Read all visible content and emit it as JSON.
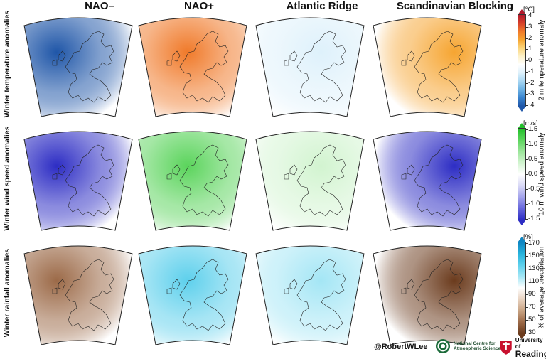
{
  "columns": [
    "NAO–",
    "NAO+",
    "Atlantic Ridge",
    "Scandinavian Blocking"
  ],
  "rows": [
    "Winter temperature anomalies",
    "Winter wind speed anomalies",
    "Winter rainfall anomalies"
  ],
  "colorbars": [
    {
      "unit": "[°C]",
      "label": "2 m temperature anomaly",
      "ticks": [
        "4",
        "3",
        "2",
        "1",
        "0",
        "-1",
        "-2",
        "-3",
        "-4"
      ],
      "colors": [
        "#b2182b",
        "#d6402a",
        "#f07a2a",
        "#f6a531",
        "#fbd57a",
        "#fdf1c8",
        "#ffffff",
        "#def1fb",
        "#a9d7f3",
        "#6fb3e4",
        "#3a84cf",
        "#1f56a8"
      ]
    },
    {
      "unit": "[m/s]",
      "label": "10 m wind speed anomaly",
      "ticks": [
        "1.5",
        "1.0",
        "0.5",
        "0.0",
        "-0.5",
        "-1.0",
        "-1.5"
      ],
      "colors": [
        "#22c02a",
        "#5bd45c",
        "#9be59a",
        "#d2f4d0",
        "#ffffff",
        "#d9d9f6",
        "#a5a5ec",
        "#6767dc",
        "#2d2dc4"
      ]
    },
    {
      "unit": "[%]",
      "label": "% of average precipitation",
      "ticks": [
        "170",
        "150",
        "130",
        "110",
        "90",
        "70",
        "50",
        "30"
      ],
      "colors": [
        "#0f86c2",
        "#27b3dc",
        "#5ed0ec",
        "#a4e6f5",
        "#ffffff",
        "#e8d2c0",
        "#c8a383",
        "#9c6a48",
        "#6b3b1d"
      ]
    }
  ],
  "panels": [
    [
      "#1f56a8",
      "#f07a2a",
      "#def1fb",
      "#f6a531"
    ],
    [
      "#2d2dc4",
      "#5bd45c",
      "#d2f4d0",
      "#2d2dc4"
    ],
    [
      "#9c6a48",
      "#5ed0ec",
      "#a4e6f5",
      "#6b3b1d"
    ]
  ],
  "footer": {
    "handle": "@RobertWLee",
    "ncas": "National Centre for Atmospheric Science",
    "reading_top": "University of",
    "reading_bottom": "Reading"
  },
  "colors": {
    "coast": "#222222",
    "frame": "#222222"
  }
}
